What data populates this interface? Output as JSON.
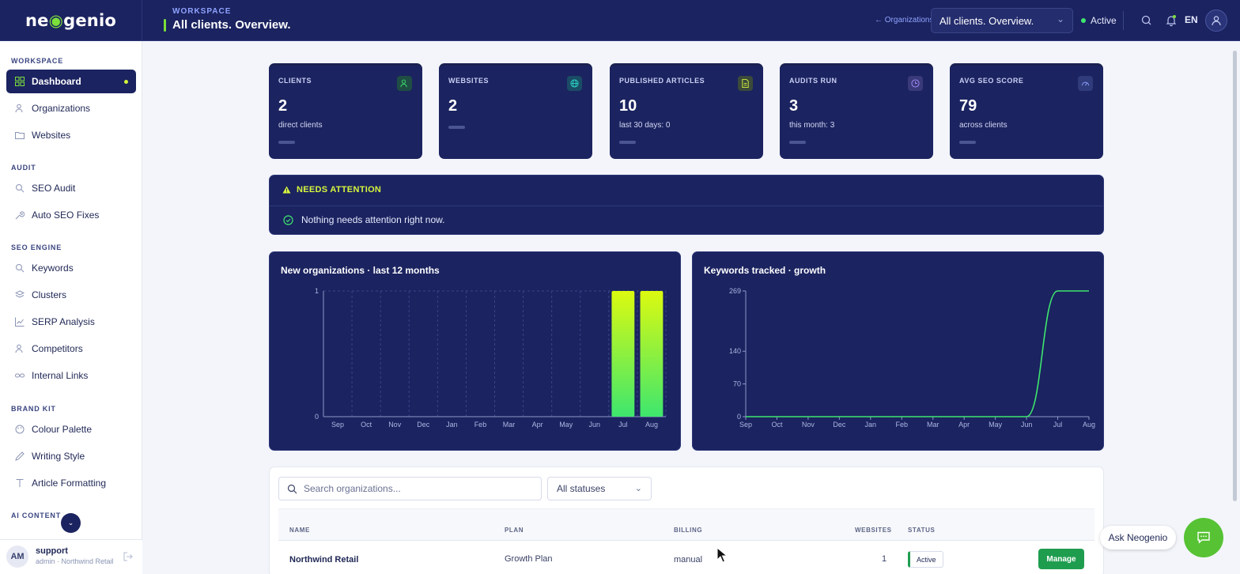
{
  "app": {
    "logo_text_a": "ne",
    "logo_text_b": "genio",
    "workspace_label": "WORKSPACE",
    "page_title": "All clients. Overview.",
    "back_link": "← Organizations",
    "client_select": "All clients. Overview.",
    "status": "Active",
    "language": "EN"
  },
  "sidebar": {
    "sections": {
      "workspace": "WORKSPACE",
      "audit": "AUDIT",
      "seo_engine": "SEO ENGINE",
      "brand_kit": "BRAND KIT",
      "ai_content": "AI CONTENT"
    },
    "items": [
      {
        "label": "Dashboard",
        "icon": "dashboard-icon"
      },
      {
        "label": "Organizations",
        "icon": "users-icon"
      },
      {
        "label": "Websites",
        "icon": "folder-icon"
      },
      {
        "label": "SEO Audit",
        "icon": "search-icon"
      },
      {
        "label": "Auto SEO Fixes",
        "icon": "wrench-icon"
      },
      {
        "label": "Keywords",
        "icon": "search-icon"
      },
      {
        "label": "Clusters",
        "icon": "layers-icon"
      },
      {
        "label": "SERP Analysis",
        "icon": "line-chart-icon"
      },
      {
        "label": "Competitors",
        "icon": "users-icon"
      },
      {
        "label": "Internal Links",
        "icon": "link-icon"
      },
      {
        "label": "Colour Palette",
        "icon": "palette-icon"
      },
      {
        "label": "Writing Style",
        "icon": "pen-icon"
      },
      {
        "label": "Article Formatting",
        "icon": "text-icon"
      }
    ],
    "user": {
      "initials": "AM",
      "name": "support",
      "role": "admin · Northwind Retail"
    }
  },
  "stats": [
    {
      "label": "CLIENTS",
      "value": "2",
      "sub": "direct clients",
      "accent": "#3ee66e",
      "icon": "users-icon"
    },
    {
      "label": "WEBSITES",
      "value": "2",
      "sub": "",
      "accent": "#2bd4c4",
      "icon": "globe-icon"
    },
    {
      "label": "PUBLISHED ARTICLES",
      "value": "10",
      "sub": "last 30 days: 0",
      "accent": "#d7f63d",
      "icon": "document-icon"
    },
    {
      "label": "AUDITS RUN",
      "value": "3",
      "sub": "this month: 3",
      "accent": "#a78bfa",
      "icon": "clock-icon"
    },
    {
      "label": "AVG SEO SCORE",
      "value": "79",
      "sub": "across clients",
      "accent": "#8fa3ff",
      "icon": "gauge-icon"
    }
  ],
  "attention": {
    "title": "NEEDS ATTENTION",
    "message": "Nothing needs attention right now."
  },
  "charts": {
    "orgs_title": "New organizations · last 12 months",
    "keywords_title": "Keywords tracked · growth"
  },
  "chart_data": [
    {
      "type": "bar",
      "title": "New organizations · last 12 months",
      "categories": [
        "Sep",
        "Oct",
        "Nov",
        "Dec",
        "Jan",
        "Feb",
        "Mar",
        "Apr",
        "May",
        "Jun",
        "Jul",
        "Aug"
      ],
      "values": [
        0,
        0,
        0,
        0,
        0,
        0,
        0,
        0,
        0,
        0,
        1,
        1
      ],
      "y_ticks": [
        0,
        1
      ],
      "ylim": [
        0,
        1
      ],
      "grid": true
    },
    {
      "type": "line",
      "title": "Keywords tracked · growth",
      "categories": [
        "Sep",
        "Oct",
        "Nov",
        "Dec",
        "Jan",
        "Feb",
        "Mar",
        "Apr",
        "May",
        "Jun",
        "Jul",
        "Aug"
      ],
      "values": [
        0,
        0,
        0,
        0,
        0,
        0,
        0,
        0,
        0,
        0,
        269,
        269
      ],
      "y_ticks": [
        0,
        70,
        140,
        269
      ],
      "ylim": [
        0,
        269
      ],
      "grid": false
    }
  ],
  "table": {
    "search_placeholder": "Search organizations...",
    "status_filter": "All statuses",
    "headers": {
      "name": "NAME",
      "plan": "PLAN",
      "billing": "BILLING",
      "websites": "WEBSITES",
      "status": "STATUS"
    },
    "rows": [
      {
        "name": "Northwind Retail",
        "plan": "Growth Plan",
        "billing": "manual",
        "websites": "1",
        "status": "Active",
        "action": "Manage"
      }
    ]
  },
  "assistant": {
    "label": "Ask Neogenio"
  },
  "colors": {
    "navy": "#1b2360",
    "accent_green": "#7be03a",
    "lime": "#d7f63d",
    "success": "#1f9d4f"
  }
}
